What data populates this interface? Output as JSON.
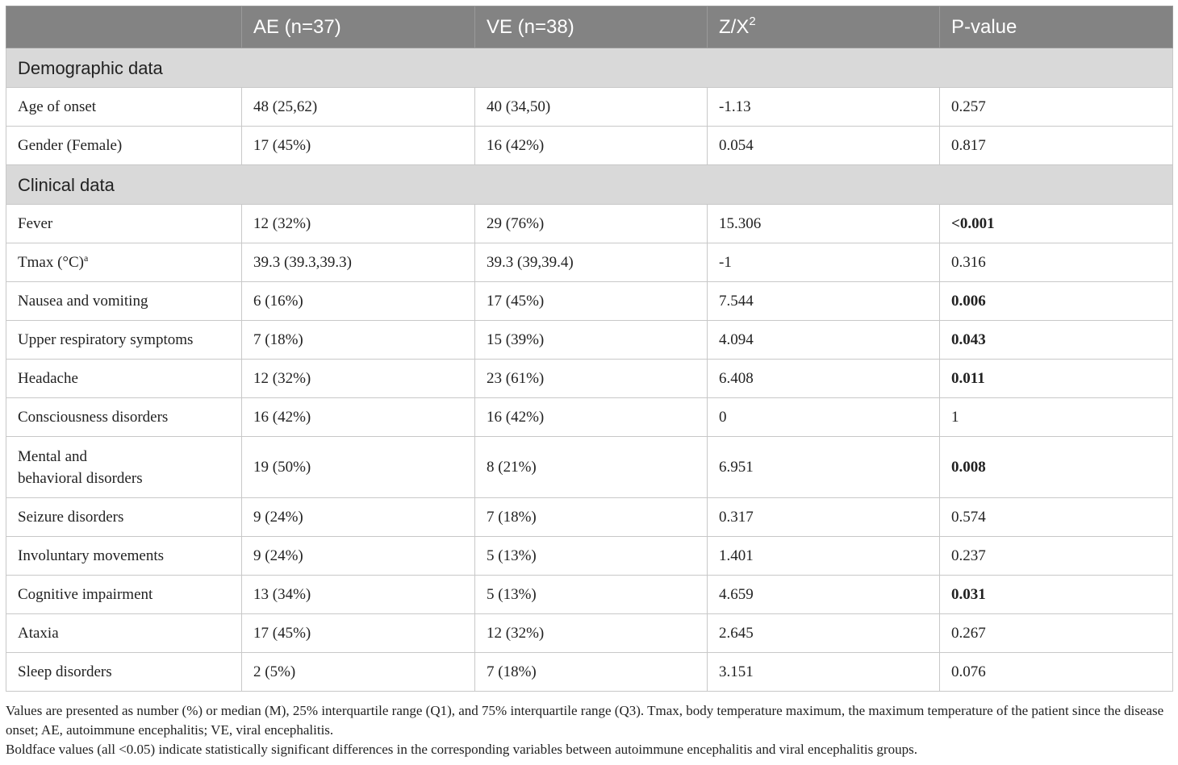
{
  "table": {
    "headers": [
      "",
      "AE (n=37)",
      "VE (n=38)",
      "Z/X",
      "P-value"
    ],
    "header_z_superscript": "2",
    "sections": [
      {
        "title": "Demographic data",
        "rows": [
          {
            "label": "Age of onset",
            "ae": "48 (25,62)",
            "ve": "40 (34,50)",
            "z": "-1.13",
            "p": "0.257",
            "p_bold": false
          },
          {
            "label": "Gender (Female)",
            "ae": "17 (45%)",
            "ve": "16 (42%)",
            "z": "0.054",
            "p": "0.817",
            "p_bold": false
          }
        ]
      },
      {
        "title": "Clinical data",
        "rows": [
          {
            "label": "Fever",
            "ae": "12 (32%)",
            "ve": "29 (76%)",
            "z": "15.306",
            "p": "<0.001",
            "p_bold": true
          },
          {
            "label": "Tmax (°C)",
            "label_sup": "a",
            "ae": "39.3 (39.3,39.3)",
            "ve": "39.3 (39,39.4)",
            "z": "-1",
            "p": "0.316",
            "p_bold": false
          },
          {
            "label": "Nausea and vomiting",
            "ae": "6 (16%)",
            "ve": "17 (45%)",
            "z": "7.544",
            "p": "0.006",
            "p_bold": true
          },
          {
            "label": "Upper respiratory symptoms",
            "ae": "7 (18%)",
            "ve": "15 (39%)",
            "z": "4.094",
            "p": "0.043",
            "p_bold": true
          },
          {
            "label": "Headache",
            "ae": "12 (32%)",
            "ve": "23 (61%)",
            "z": "6.408",
            "p": "0.011",
            "p_bold": true
          },
          {
            "label": "Consciousness disorders",
            "ae": "16 (42%)",
            "ve": "16 (42%)",
            "z": "0",
            "p": "1",
            "p_bold": false
          },
          {
            "label_line1": "Mental and",
            "label_line2": "behavioral disorders",
            "ae": "19 (50%)",
            "ve": "8 (21%)",
            "z": "6.951",
            "p": "0.008",
            "p_bold": true
          },
          {
            "label": "Seizure disorders",
            "ae": "9 (24%)",
            "ve": "7 (18%)",
            "z": "0.317",
            "p": "0.574",
            "p_bold": false
          },
          {
            "label": "Involuntary movements",
            "ae": "9 (24%)",
            "ve": "5 (13%)",
            "z": "1.401",
            "p": "0.237",
            "p_bold": false
          },
          {
            "label": "Cognitive impairment",
            "ae": "13 (34%)",
            "ve": "5 (13%)",
            "z": "4.659",
            "p": "0.031",
            "p_bold": true
          },
          {
            "label": "Ataxia",
            "ae": "17 (45%)",
            "ve": "12 (32%)",
            "z": "2.645",
            "p": "0.267",
            "p_bold": false
          },
          {
            "label": "Sleep disorders",
            "ae": "2 (5%)",
            "ve": "7 (18%)",
            "z": "3.151",
            "p": "0.076",
            "p_bold": false
          }
        ]
      }
    ]
  },
  "footnotes": {
    "line1": "Values are presented as number (%) or median (M), 25% interquartile range (Q1), and 75% interquartile range (Q3). Tmax, body temperature maximum, the maximum temperature of the patient since the disease onset; AE, autoimmune encephalitis; VE, viral encephalitis.",
    "line2": "Boldface values (all <0.05) indicate statistically significant differences in the corresponding variables between autoimmune encephalitis and viral encephalitis groups."
  },
  "colors": {
    "header_bg": "#838383",
    "section_bg": "#d9d9d9",
    "border": "#c8c8c8"
  }
}
